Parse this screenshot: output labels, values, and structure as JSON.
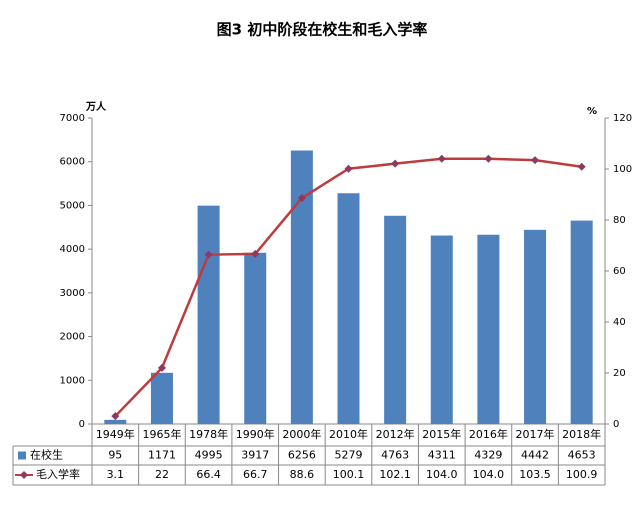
{
  "chart_data": {
    "type": "bar_line",
    "title": "图3  初中阶段在校生和毛入学率",
    "y_label": "万人",
    "y2_label": "%",
    "categories": [
      "1949年",
      "1965年",
      "1978年",
      "1990年",
      "2000年",
      "2010年",
      "2012年",
      "2015年",
      "2016年",
      "2017年",
      "2018年"
    ],
    "series": [
      {
        "name": "在校生",
        "type": "bar",
        "color": "#4f81bd",
        "values": [
          95,
          1171,
          4995,
          3917,
          6256,
          5279,
          4763,
          4311,
          4329,
          4442,
          4653
        ]
      },
      {
        "name": "毛入学率",
        "type": "line",
        "axis": "y2",
        "color": "#be3c3c",
        "values": [
          3.1,
          22,
          66.4,
          66.7,
          88.6,
          100.1,
          102.1,
          104,
          104,
          103.5,
          100.9
        ],
        "value_labels": [
          "3.1",
          "22",
          "66.4",
          "66.7",
          "88.6",
          "100.1",
          "102.1",
          "104.0",
          "104.0",
          "103.5",
          "100.9"
        ]
      }
    ],
    "ylim": [
      0,
      7000
    ],
    "yticks": [
      0,
      1000,
      2000,
      3000,
      4000,
      5000,
      6000,
      7000
    ],
    "y2lim": [
      0,
      120
    ],
    "y2ticks": [
      0,
      20,
      40,
      60,
      80,
      100,
      120
    ],
    "grid": false,
    "data_table": true
  }
}
